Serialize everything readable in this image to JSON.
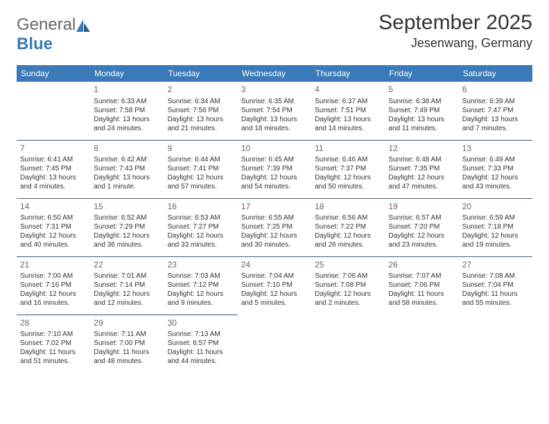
{
  "logo": {
    "text1": "General",
    "text2": "Blue"
  },
  "title": "September 2025",
  "location": "Jesenwang, Germany",
  "header_bg": "#3a7ab8",
  "header_fg": "#ffffff",
  "cell_border": "#3a5a78",
  "text_color": "#333333",
  "daynum_color": "#666666",
  "font_family": "Arial",
  "day_headers": [
    "Sunday",
    "Monday",
    "Tuesday",
    "Wednesday",
    "Thursday",
    "Friday",
    "Saturday"
  ],
  "weeks": [
    [
      null,
      {
        "n": "1",
        "sr": "Sunrise: 6:33 AM",
        "ss": "Sunset: 7:58 PM",
        "d1": "Daylight: 13 hours",
        "d2": "and 24 minutes."
      },
      {
        "n": "2",
        "sr": "Sunrise: 6:34 AM",
        "ss": "Sunset: 7:56 PM",
        "d1": "Daylight: 13 hours",
        "d2": "and 21 minutes."
      },
      {
        "n": "3",
        "sr": "Sunrise: 6:35 AM",
        "ss": "Sunset: 7:54 PM",
        "d1": "Daylight: 13 hours",
        "d2": "and 18 minutes."
      },
      {
        "n": "4",
        "sr": "Sunrise: 6:37 AM",
        "ss": "Sunset: 7:51 PM",
        "d1": "Daylight: 13 hours",
        "d2": "and 14 minutes."
      },
      {
        "n": "5",
        "sr": "Sunrise: 6:38 AM",
        "ss": "Sunset: 7:49 PM",
        "d1": "Daylight: 13 hours",
        "d2": "and 11 minutes."
      },
      {
        "n": "6",
        "sr": "Sunrise: 6:39 AM",
        "ss": "Sunset: 7:47 PM",
        "d1": "Daylight: 13 hours",
        "d2": "and 7 minutes."
      }
    ],
    [
      {
        "n": "7",
        "sr": "Sunrise: 6:41 AM",
        "ss": "Sunset: 7:45 PM",
        "d1": "Daylight: 13 hours",
        "d2": "and 4 minutes."
      },
      {
        "n": "8",
        "sr": "Sunrise: 6:42 AM",
        "ss": "Sunset: 7:43 PM",
        "d1": "Daylight: 13 hours",
        "d2": "and 1 minute."
      },
      {
        "n": "9",
        "sr": "Sunrise: 6:44 AM",
        "ss": "Sunset: 7:41 PM",
        "d1": "Daylight: 12 hours",
        "d2": "and 57 minutes."
      },
      {
        "n": "10",
        "sr": "Sunrise: 6:45 AM",
        "ss": "Sunset: 7:39 PM",
        "d1": "Daylight: 12 hours",
        "d2": "and 54 minutes."
      },
      {
        "n": "11",
        "sr": "Sunrise: 6:46 AM",
        "ss": "Sunset: 7:37 PM",
        "d1": "Daylight: 12 hours",
        "d2": "and 50 minutes."
      },
      {
        "n": "12",
        "sr": "Sunrise: 6:48 AM",
        "ss": "Sunset: 7:35 PM",
        "d1": "Daylight: 12 hours",
        "d2": "and 47 minutes."
      },
      {
        "n": "13",
        "sr": "Sunrise: 6:49 AM",
        "ss": "Sunset: 7:33 PM",
        "d1": "Daylight: 12 hours",
        "d2": "and 43 minutes."
      }
    ],
    [
      {
        "n": "14",
        "sr": "Sunrise: 6:50 AM",
        "ss": "Sunset: 7:31 PM",
        "d1": "Daylight: 12 hours",
        "d2": "and 40 minutes."
      },
      {
        "n": "15",
        "sr": "Sunrise: 6:52 AM",
        "ss": "Sunset: 7:29 PM",
        "d1": "Daylight: 12 hours",
        "d2": "and 36 minutes."
      },
      {
        "n": "16",
        "sr": "Sunrise: 6:53 AM",
        "ss": "Sunset: 7:27 PM",
        "d1": "Daylight: 12 hours",
        "d2": "and 33 minutes."
      },
      {
        "n": "17",
        "sr": "Sunrise: 6:55 AM",
        "ss": "Sunset: 7:25 PM",
        "d1": "Daylight: 12 hours",
        "d2": "and 30 minutes."
      },
      {
        "n": "18",
        "sr": "Sunrise: 6:56 AM",
        "ss": "Sunset: 7:22 PM",
        "d1": "Daylight: 12 hours",
        "d2": "and 26 minutes."
      },
      {
        "n": "19",
        "sr": "Sunrise: 6:57 AM",
        "ss": "Sunset: 7:20 PM",
        "d1": "Daylight: 12 hours",
        "d2": "and 23 minutes."
      },
      {
        "n": "20",
        "sr": "Sunrise: 6:59 AM",
        "ss": "Sunset: 7:18 PM",
        "d1": "Daylight: 12 hours",
        "d2": "and 19 minutes."
      }
    ],
    [
      {
        "n": "21",
        "sr": "Sunrise: 7:00 AM",
        "ss": "Sunset: 7:16 PM",
        "d1": "Daylight: 12 hours",
        "d2": "and 16 minutes."
      },
      {
        "n": "22",
        "sr": "Sunrise: 7:01 AM",
        "ss": "Sunset: 7:14 PM",
        "d1": "Daylight: 12 hours",
        "d2": "and 12 minutes."
      },
      {
        "n": "23",
        "sr": "Sunrise: 7:03 AM",
        "ss": "Sunset: 7:12 PM",
        "d1": "Daylight: 12 hours",
        "d2": "and 9 minutes."
      },
      {
        "n": "24",
        "sr": "Sunrise: 7:04 AM",
        "ss": "Sunset: 7:10 PM",
        "d1": "Daylight: 12 hours",
        "d2": "and 5 minutes."
      },
      {
        "n": "25",
        "sr": "Sunrise: 7:06 AM",
        "ss": "Sunset: 7:08 PM",
        "d1": "Daylight: 12 hours",
        "d2": "and 2 minutes."
      },
      {
        "n": "26",
        "sr": "Sunrise: 7:07 AM",
        "ss": "Sunset: 7:06 PM",
        "d1": "Daylight: 11 hours",
        "d2": "and 58 minutes."
      },
      {
        "n": "27",
        "sr": "Sunrise: 7:08 AM",
        "ss": "Sunset: 7:04 PM",
        "d1": "Daylight: 11 hours",
        "d2": "and 55 minutes."
      }
    ],
    [
      {
        "n": "28",
        "sr": "Sunrise: 7:10 AM",
        "ss": "Sunset: 7:02 PM",
        "d1": "Daylight: 11 hours",
        "d2": "and 51 minutes."
      },
      {
        "n": "29",
        "sr": "Sunrise: 7:11 AM",
        "ss": "Sunset: 7:00 PM",
        "d1": "Daylight: 11 hours",
        "d2": "and 48 minutes."
      },
      {
        "n": "30",
        "sr": "Sunrise: 7:13 AM",
        "ss": "Sunset: 6:57 PM",
        "d1": "Daylight: 11 hours",
        "d2": "and 44 minutes."
      },
      null,
      null,
      null,
      null
    ]
  ]
}
